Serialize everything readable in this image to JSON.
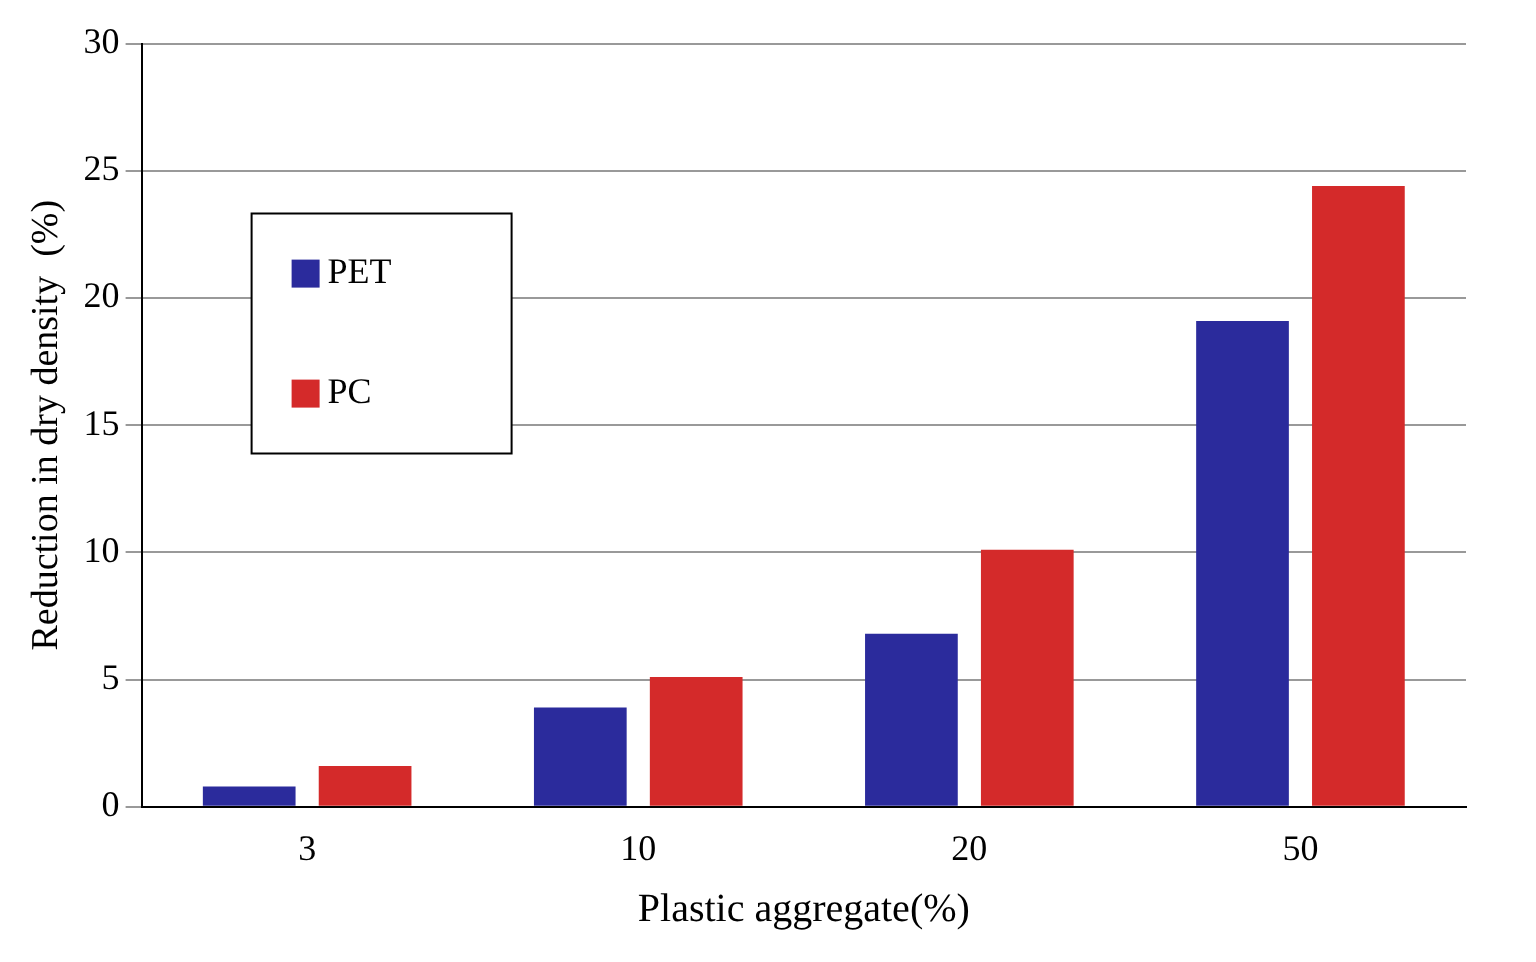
{
  "chart_data": {
    "type": "bar",
    "xlabel": "Plastic aggregate(%)",
    "ylabel": "Reduction in dry density  (%)",
    "categories": [
      "3",
      "10",
      "20",
      "50"
    ],
    "series": [
      {
        "name": "PET",
        "color": "#2b2b9c",
        "values": [
          0.8,
          3.9,
          6.8,
          19.1
        ]
      },
      {
        "name": "PC",
        "color": "#d42a2a",
        "values": [
          1.6,
          5.1,
          10.1,
          24.4
        ]
      }
    ],
    "ylim": [
      0,
      30
    ],
    "yticks": [
      0,
      5,
      10,
      15,
      20,
      25,
      30
    ],
    "grid": "y",
    "legend": "top left"
  }
}
